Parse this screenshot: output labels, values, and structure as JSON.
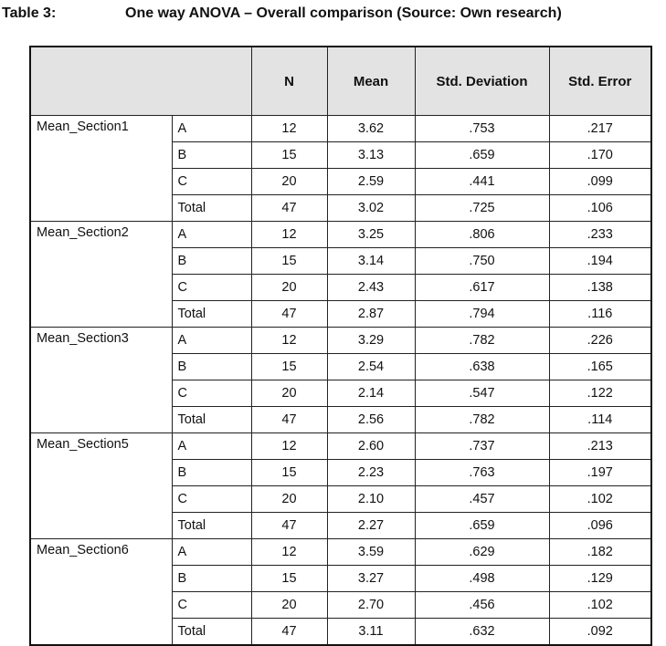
{
  "caption": {
    "label": "Table 3:",
    "title": "One way ANOVA – Overall comparison (Source: Own research)"
  },
  "columns": [
    "",
    "N",
    "Mean",
    "Std. Deviation",
    "Std. Error"
  ],
  "sections": [
    {
      "name": "Mean_Section1",
      "rows": [
        {
          "group": "A",
          "n": "12",
          "mean": "3.62",
          "sd": ".753",
          "se": ".217"
        },
        {
          "group": "B",
          "n": "15",
          "mean": "3.13",
          "sd": ".659",
          "se": ".170"
        },
        {
          "group": "C",
          "n": "20",
          "mean": "2.59",
          "sd": ".441",
          "se": ".099"
        },
        {
          "group": "Total",
          "n": "47",
          "mean": "3.02",
          "sd": ".725",
          "se": ".106"
        }
      ]
    },
    {
      "name": "Mean_Section2",
      "rows": [
        {
          "group": "A",
          "n": "12",
          "mean": "3.25",
          "sd": ".806",
          "se": ".233"
        },
        {
          "group": "B",
          "n": "15",
          "mean": "3.14",
          "sd": ".750",
          "se": ".194"
        },
        {
          "group": "C",
          "n": "20",
          "mean": "2.43",
          "sd": ".617",
          "se": ".138"
        },
        {
          "group": "Total",
          "n": "47",
          "mean": "2.87",
          "sd": ".794",
          "se": ".116"
        }
      ]
    },
    {
      "name": "Mean_Section3",
      "rows": [
        {
          "group": "A",
          "n": "12",
          "mean": "3.29",
          "sd": ".782",
          "se": ".226"
        },
        {
          "group": "B",
          "n": "15",
          "mean": "2.54",
          "sd": ".638",
          "se": ".165"
        },
        {
          "group": "C",
          "n": "20",
          "mean": "2.14",
          "sd": ".547",
          "se": ".122"
        },
        {
          "group": "Total",
          "n": "47",
          "mean": "2.56",
          "sd": ".782",
          "se": ".114"
        }
      ]
    },
    {
      "name": "Mean_Section5",
      "rows": [
        {
          "group": "A",
          "n": "12",
          "mean": "2.60",
          "sd": ".737",
          "se": ".213"
        },
        {
          "group": "B",
          "n": "15",
          "mean": "2.23",
          "sd": ".763",
          "se": ".197"
        },
        {
          "group": "C",
          "n": "20",
          "mean": "2.10",
          "sd": ".457",
          "se": ".102"
        },
        {
          "group": "Total",
          "n": "47",
          "mean": "2.27",
          "sd": ".659",
          "se": ".096"
        }
      ]
    },
    {
      "name": "Mean_Section6",
      "rows": [
        {
          "group": "A",
          "n": "12",
          "mean": "3.59",
          "sd": ".629",
          "se": ".182"
        },
        {
          "group": "B",
          "n": "15",
          "mean": "3.27",
          "sd": ".498",
          "se": ".129"
        },
        {
          "group": "C",
          "n": "20",
          "mean": "2.70",
          "sd": ".456",
          "se": ".102"
        },
        {
          "group": "Total",
          "n": "47",
          "mean": "3.11",
          "sd": ".632",
          "se": ".092"
        }
      ]
    }
  ]
}
